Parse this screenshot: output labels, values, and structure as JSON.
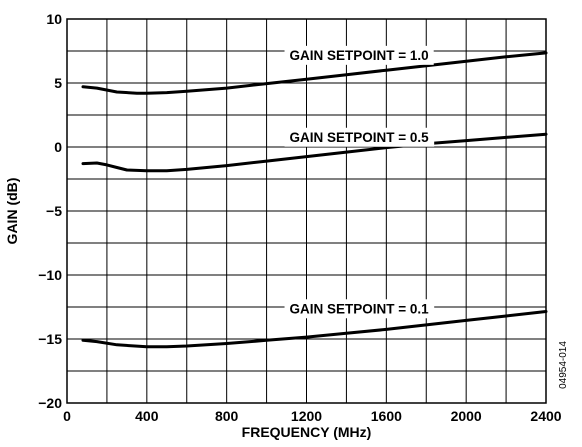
{
  "chart_data": {
    "type": "line",
    "title": "",
    "xlabel": "FREQUENCY (MHz)",
    "ylabel": "GAIN (dB)",
    "xlim": [
      0,
      2400
    ],
    "ylim": [
      -20,
      10
    ],
    "grid": true,
    "x_ticks": [
      {
        "value": 0,
        "label": "0"
      },
      {
        "value": 400,
        "label": "400"
      },
      {
        "value": 800,
        "label": "800"
      },
      {
        "value": 1200,
        "label": "1200"
      },
      {
        "value": 1600,
        "label": "1600"
      },
      {
        "value": 2000,
        "label": "2000"
      },
      {
        "value": 2400,
        "label": "2400"
      }
    ],
    "x_minor_step": 200,
    "y_ticks": [
      {
        "value": 10,
        "label": "10"
      },
      {
        "value": 5,
        "label": "5"
      },
      {
        "value": 0,
        "label": "0"
      },
      {
        "value": -5,
        "label": "−5"
      },
      {
        "value": -10,
        "label": "−10"
      },
      {
        "value": -15,
        "label": "−15"
      },
      {
        "value": -20,
        "label": "−20"
      }
    ],
    "y_minor_step": 2.5,
    "series": [
      {
        "name": "GAIN SETPOINT = 1.0",
        "x": [
          80,
          150,
          250,
          350,
          400,
          500,
          600,
          800,
          1000,
          1200,
          1400,
          1600,
          1800,
          2000,
          2200,
          2400
        ],
        "y": [
          4.7,
          4.6,
          4.3,
          4.2,
          4.2,
          4.25,
          4.35,
          4.6,
          4.95,
          5.3,
          5.65,
          6.0,
          6.35,
          6.7,
          7.05,
          7.35
        ]
      },
      {
        "name": "GAIN SETPOINT = 0.5",
        "x": [
          80,
          150,
          200,
          250,
          300,
          400,
          500,
          600,
          800,
          1000,
          1200,
          1400,
          1600,
          1800,
          2000,
          2200,
          2400
        ],
        "y": [
          -1.3,
          -1.25,
          -1.4,
          -1.6,
          -1.8,
          -1.85,
          -1.85,
          -1.75,
          -1.45,
          -1.1,
          -0.75,
          -0.4,
          -0.05,
          0.25,
          0.5,
          0.75,
          1.0
        ]
      },
      {
        "name": "GAIN SETPOINT = 0.1",
        "x": [
          80,
          150,
          250,
          400,
          500,
          600,
          800,
          1000,
          1200,
          1400,
          1600,
          1800,
          2000,
          2200,
          2400
        ],
        "y": [
          -15.1,
          -15.2,
          -15.45,
          -15.6,
          -15.6,
          -15.55,
          -15.35,
          -15.1,
          -14.85,
          -14.55,
          -14.25,
          -13.9,
          -13.55,
          -13.2,
          -12.85
        ]
      }
    ],
    "annotations": [
      {
        "text": "GAIN SETPOINT = 1.0",
        "x": 1115,
        "y": 7.2,
        "series": 0
      },
      {
        "text": "GAIN SETPOINT = 0.5",
        "x": 1115,
        "y": 0.8,
        "series": 1
      },
      {
        "text": "GAIN SETPOINT = 0.1",
        "x": 1115,
        "y": -12.6,
        "series": 2
      }
    ],
    "figure_id": "04954-014",
    "line_color": "#000000",
    "grid_color": "#000000"
  }
}
